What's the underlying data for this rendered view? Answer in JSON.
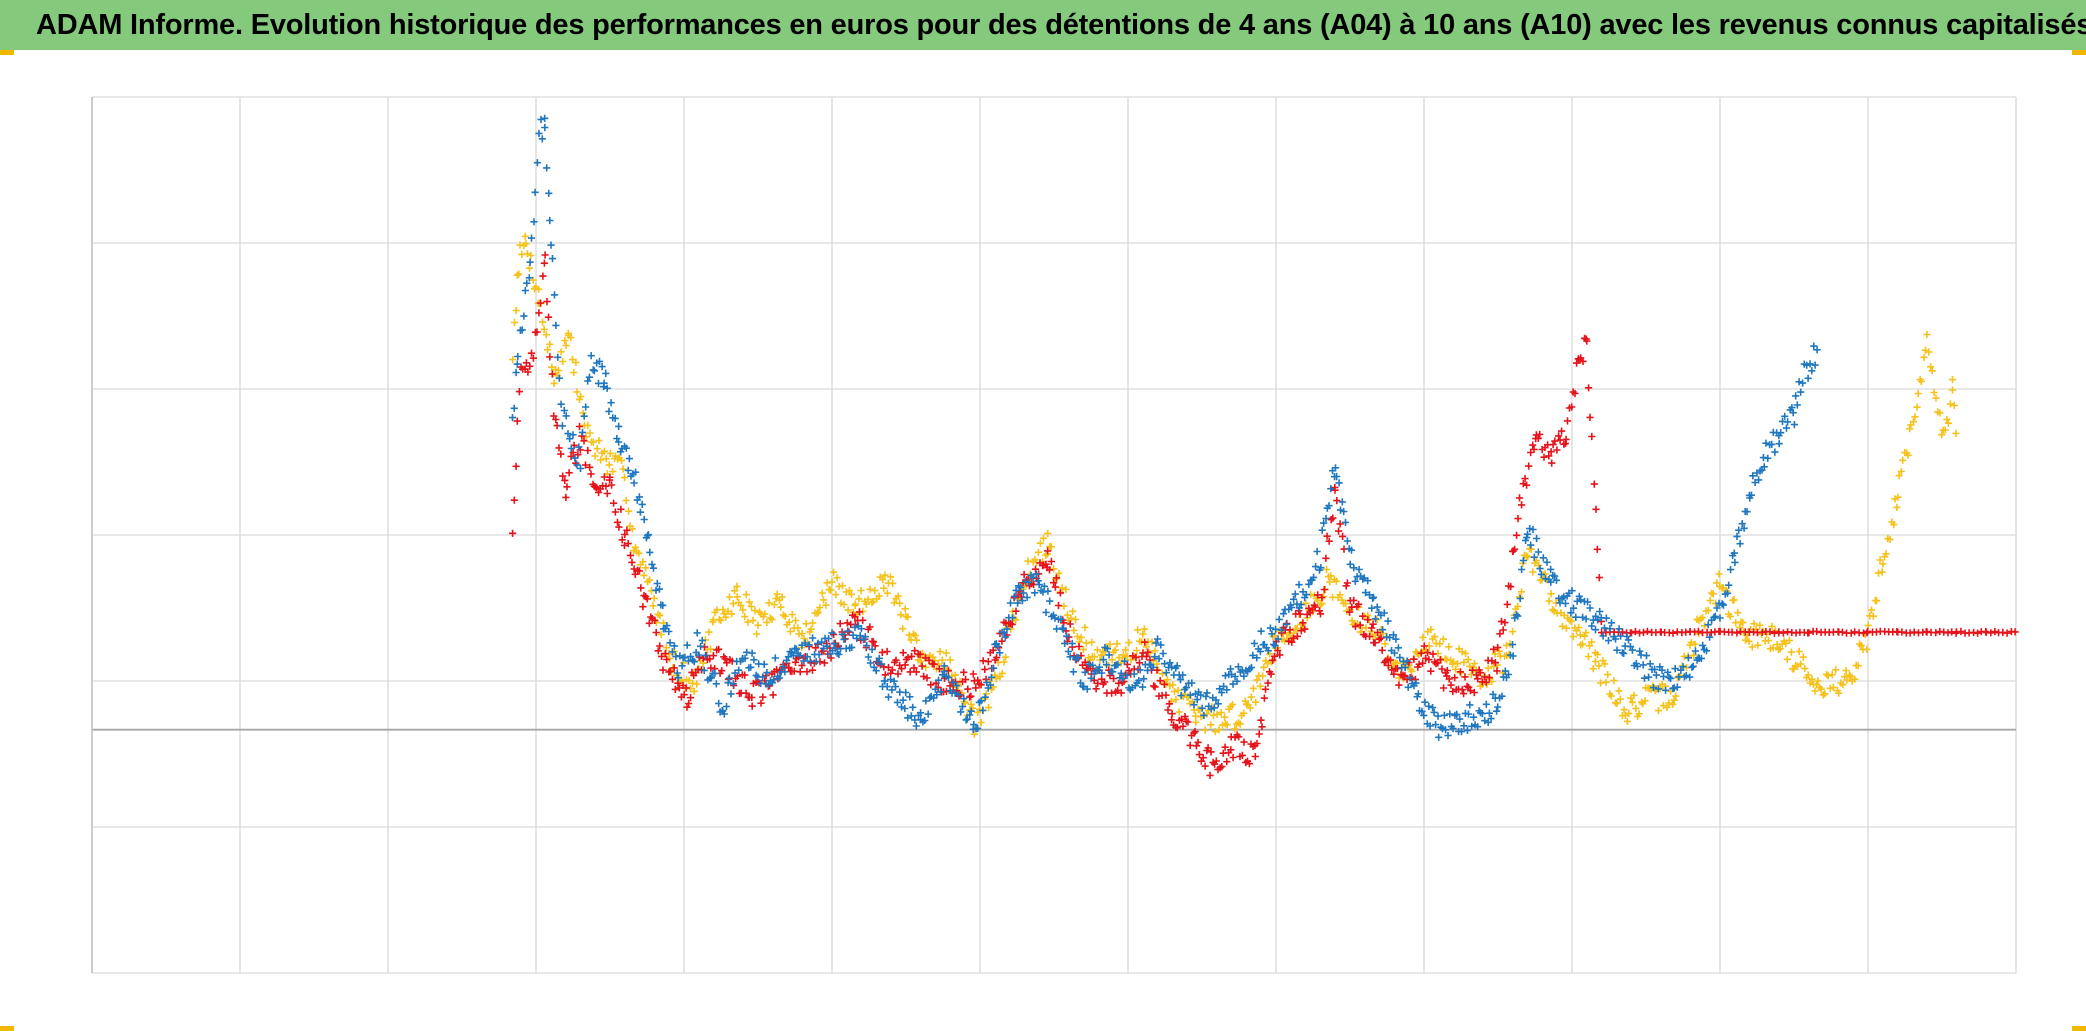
{
  "title": "ADAM Informe. Evolution historique des performances en euros pour des détentions de 4 ans (A04) à 10 ans (A10) avec les revenus connus capitalisés",
  "colors": {
    "title_background": "#84c97c",
    "corner_marks": "#f0b800",
    "gridlines": "#d9d9d9",
    "zero_line": "#a6a6a6",
    "axis": "#bfbfbf"
  },
  "chart_data": {
    "type": "scatter",
    "marker": "plus",
    "title": "ADAM Informe. Evolution historique des performances en euros pour des détentions de 4 ans (A04) à 10 ans (A10) avec les revenus connus capitalisés",
    "xlabel": "",
    "ylabel": "",
    "xlim": [
      0,
      13
    ],
    "ylim": [
      -1.0,
      2.6
    ],
    "grid": true,
    "legend": "none",
    "reference_line_y": 0,
    "series": [
      {
        "color": "#f5c21b",
        "points": [
          [
            2.84,
            1.55
          ],
          [
            2.88,
            1.92
          ],
          [
            2.93,
            2.0
          ],
          [
            3.02,
            1.78
          ],
          [
            3.12,
            1.45
          ],
          [
            3.22,
            1.62
          ],
          [
            3.34,
            1.22
          ],
          [
            3.48,
            1.1
          ],
          [
            3.6,
            1.05
          ],
          [
            3.66,
            0.77
          ],
          [
            3.8,
            0.52
          ],
          [
            3.9,
            0.3
          ],
          [
            4.06,
            0.18
          ],
          [
            4.2,
            0.42
          ],
          [
            4.36,
            0.55
          ],
          [
            4.5,
            0.44
          ],
          [
            4.66,
            0.52
          ],
          [
            4.8,
            0.37
          ],
          [
            5.0,
            0.6
          ],
          [
            5.16,
            0.5
          ],
          [
            5.36,
            0.62
          ],
          [
            5.5,
            0.44
          ],
          [
            5.6,
            0.27
          ],
          [
            5.76,
            0.3
          ],
          [
            5.96,
            0.03
          ],
          [
            6.1,
            0.18
          ],
          [
            6.3,
            0.62
          ],
          [
            6.46,
            0.76
          ],
          [
            6.6,
            0.5
          ],
          [
            6.76,
            0.3
          ],
          [
            6.96,
            0.3
          ],
          [
            7.1,
            0.38
          ],
          [
            7.3,
            0.16
          ],
          [
            7.46,
            0.05
          ],
          [
            7.66,
            0.04
          ],
          [
            7.8,
            0.08
          ],
          [
            8.0,
            0.37
          ],
          [
            8.2,
            0.47
          ],
          [
            8.36,
            0.62
          ],
          [
            8.5,
            0.47
          ],
          [
            8.7,
            0.4
          ],
          [
            8.86,
            0.22
          ],
          [
            9.0,
            0.38
          ],
          [
            9.2,
            0.3
          ],
          [
            9.4,
            0.22
          ],
          [
            9.56,
            0.3
          ],
          [
            9.7,
            0.73
          ],
          [
            9.9,
            0.5
          ],
          [
            10.06,
            0.4
          ],
          [
            10.16,
            0.28
          ],
          [
            10.36,
            0.08
          ],
          [
            10.5,
            0.12
          ],
          [
            10.7,
            0.15
          ],
          [
            10.86,
            0.43
          ],
          [
            11.0,
            0.6
          ],
          [
            11.16,
            0.4
          ],
          [
            11.36,
            0.38
          ],
          [
            11.5,
            0.3
          ],
          [
            11.66,
            0.19
          ],
          [
            11.86,
            0.2
          ],
          [
            12.0,
            0.38
          ],
          [
            12.1,
            0.7
          ],
          [
            12.2,
            0.96
          ],
          [
            12.28,
            1.2
          ],
          [
            12.34,
            1.4
          ],
          [
            12.4,
            1.58
          ],
          [
            12.46,
            1.33
          ],
          [
            12.52,
            1.22
          ],
          [
            12.57,
            1.4
          ],
          [
            12.6,
            1.2
          ]
        ]
      },
      {
        "color": "#e6131b",
        "points": [
          [
            2.84,
            0.83
          ],
          [
            2.9,
            1.5
          ],
          [
            2.96,
            1.45
          ],
          [
            3.06,
            1.9
          ],
          [
            3.12,
            1.3
          ],
          [
            3.2,
            1.0
          ],
          [
            3.3,
            1.2
          ],
          [
            3.4,
            1.0
          ],
          [
            3.5,
            1.0
          ],
          [
            3.6,
            0.8
          ],
          [
            3.74,
            0.52
          ],
          [
            3.86,
            0.27
          ],
          [
            4.02,
            0.14
          ],
          [
            4.16,
            0.32
          ],
          [
            4.3,
            0.24
          ],
          [
            4.46,
            0.15
          ],
          [
            4.6,
            0.18
          ],
          [
            4.76,
            0.27
          ],
          [
            4.96,
            0.32
          ],
          [
            5.16,
            0.45
          ],
          [
            5.36,
            0.28
          ],
          [
            5.56,
            0.28
          ],
          [
            5.76,
            0.2
          ],
          [
            5.96,
            0.18
          ],
          [
            6.1,
            0.3
          ],
          [
            6.3,
            0.6
          ],
          [
            6.46,
            0.7
          ],
          [
            6.6,
            0.4
          ],
          [
            6.76,
            0.2
          ],
          [
            6.96,
            0.2
          ],
          [
            7.1,
            0.32
          ],
          [
            7.3,
            0.08
          ],
          [
            7.46,
            -0.04
          ],
          [
            7.56,
            -0.14
          ],
          [
            7.7,
            -0.07
          ],
          [
            7.86,
            -0.1
          ],
          [
            8.0,
            0.33
          ],
          [
            8.16,
            0.45
          ],
          [
            8.3,
            0.52
          ],
          [
            8.4,
            0.98
          ],
          [
            8.5,
            0.5
          ],
          [
            8.66,
            0.4
          ],
          [
            8.76,
            0.3
          ],
          [
            8.86,
            0.2
          ],
          [
            9.0,
            0.3
          ],
          [
            9.16,
            0.2
          ],
          [
            9.36,
            0.2
          ],
          [
            9.5,
            0.3
          ],
          [
            9.6,
            0.7
          ],
          [
            9.66,
            0.95
          ],
          [
            9.76,
            1.18
          ],
          [
            9.86,
            1.12
          ],
          [
            9.96,
            1.2
          ],
          [
            10.06,
            1.55
          ],
          [
            10.1,
            1.6
          ],
          [
            10.2,
            0.4
          ],
          [
            10.4,
            0.4
          ],
          [
            10.6,
            0.4
          ],
          [
            10.8,
            0.4
          ],
          [
            11.0,
            0.4
          ],
          [
            11.2,
            0.4
          ],
          [
            11.4,
            0.4
          ],
          [
            11.6,
            0.4
          ],
          [
            11.8,
            0.4
          ],
          [
            12.0,
            0.4
          ],
          [
            12.2,
            0.4
          ],
          [
            12.4,
            0.4
          ],
          [
            12.6,
            0.4
          ],
          [
            12.8,
            0.4
          ],
          [
            13.0,
            0.4
          ]
        ]
      },
      {
        "color": "#1f77c0",
        "points": [
          [
            2.84,
            1.3
          ],
          [
            2.88,
            1.55
          ],
          [
            2.96,
            1.9
          ],
          [
            3.02,
            2.45
          ],
          [
            3.06,
            2.5
          ],
          [
            3.1,
            2.0
          ],
          [
            3.18,
            1.3
          ],
          [
            3.3,
            1.1
          ],
          [
            3.36,
            1.5
          ],
          [
            3.46,
            1.45
          ],
          [
            3.56,
            1.2
          ],
          [
            3.66,
            1.05
          ],
          [
            3.76,
            0.78
          ],
          [
            3.86,
            0.45
          ],
          [
            3.96,
            0.25
          ],
          [
            4.1,
            0.35
          ],
          [
            4.26,
            0.1
          ],
          [
            4.4,
            0.3
          ],
          [
            4.56,
            0.22
          ],
          [
            4.76,
            0.3
          ],
          [
            5.0,
            0.35
          ],
          [
            5.2,
            0.4
          ],
          [
            5.36,
            0.2
          ],
          [
            5.5,
            0.1
          ],
          [
            5.6,
            0.02
          ],
          [
            5.76,
            0.22
          ],
          [
            5.96,
            0.0
          ],
          [
            6.1,
            0.3
          ],
          [
            6.26,
            0.55
          ],
          [
            6.4,
            0.6
          ],
          [
            6.56,
            0.38
          ],
          [
            6.7,
            0.2
          ],
          [
            6.86,
            0.3
          ],
          [
            7.06,
            0.18
          ],
          [
            7.2,
            0.35
          ],
          [
            7.36,
            0.18
          ],
          [
            7.5,
            0.1
          ],
          [
            7.7,
            0.2
          ],
          [
            7.9,
            0.35
          ],
          [
            8.0,
            0.4
          ],
          [
            8.16,
            0.55
          ],
          [
            8.3,
            0.72
          ],
          [
            8.4,
            1.1
          ],
          [
            8.5,
            0.7
          ],
          [
            8.66,
            0.52
          ],
          [
            8.8,
            0.35
          ],
          [
            8.96,
            0.12
          ],
          [
            9.1,
            0.0
          ],
          [
            9.3,
            0.05
          ],
          [
            9.5,
            0.1
          ],
          [
            9.6,
            0.35
          ],
          [
            9.7,
            0.82
          ],
          [
            9.86,
            0.6
          ],
          [
            10.0,
            0.52
          ],
          [
            10.16,
            0.45
          ],
          [
            10.36,
            0.35
          ],
          [
            10.56,
            0.22
          ],
          [
            10.7,
            0.2
          ],
          [
            10.86,
            0.3
          ],
          [
            11.0,
            0.5
          ],
          [
            11.1,
            0.72
          ],
          [
            11.2,
            0.95
          ],
          [
            11.3,
            1.13
          ],
          [
            11.4,
            1.2
          ],
          [
            11.5,
            1.3
          ],
          [
            11.56,
            1.45
          ],
          [
            11.62,
            1.5
          ],
          [
            11.66,
            1.58
          ]
        ]
      }
    ]
  }
}
